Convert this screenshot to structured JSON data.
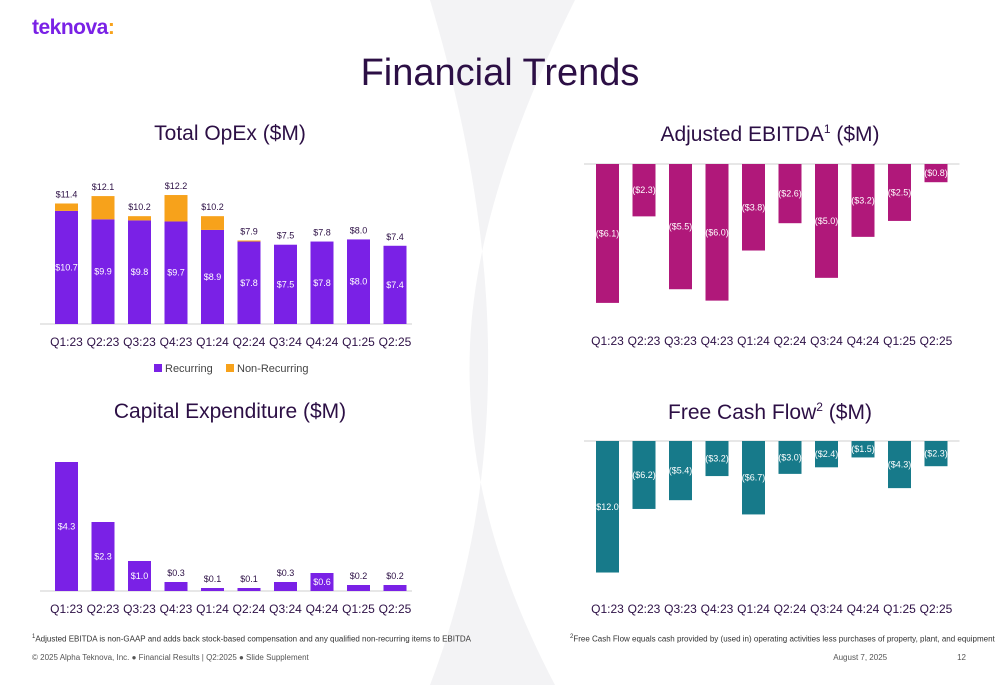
{
  "logo": {
    "text": "teknova",
    "colon": ":"
  },
  "page_title": "Financial Trends",
  "colors": {
    "recurring": "#7a21e6",
    "non_recurring": "#f7a21b",
    "ebitda": "#b0187a",
    "fcf": "#177a8a",
    "capex": "#7a21e6"
  },
  "chart_data": [
    {
      "id": "opex",
      "type": "bar",
      "stacked": true,
      "title": "Total OpEx ($M)",
      "categories": [
        "Q1:23",
        "Q2:23",
        "Q3:23",
        "Q4:23",
        "Q1:24",
        "Q2:24",
        "Q3:24",
        "Q4:24",
        "Q1:25",
        "Q2:25"
      ],
      "series": [
        {
          "name": "Recurring",
          "values": [
            10.7,
            9.9,
            9.8,
            9.7,
            8.9,
            7.8,
            7.5,
            7.8,
            8.0,
            7.4
          ],
          "labels": [
            "$10.7",
            "$9.9",
            "$9.8",
            "$9.7",
            "$8.9",
            "$7.8",
            "$7.5",
            "$7.8",
            "$8.0",
            "$7.4"
          ]
        },
        {
          "name": "Non-Recurring",
          "values": [
            0.7,
            2.2,
            0.4,
            2.5,
            1.3,
            0.1,
            0.0,
            0.0,
            0.0,
            0.0
          ]
        }
      ],
      "totals": [
        "$11.4",
        "$12.1",
        "$10.2",
        "$12.2",
        "$10.2",
        "$7.9",
        "$7.5",
        "$7.8",
        "$8.0",
        "$7.4"
      ],
      "total_values": [
        11.4,
        12.1,
        10.2,
        12.2,
        10.2,
        7.9,
        7.5,
        7.8,
        8.0,
        7.4
      ],
      "legend": [
        "Recurring",
        "Non-Recurring"
      ],
      "legend_position": "bottom",
      "ylim": [
        0,
        14
      ],
      "grid": false
    },
    {
      "id": "ebitda",
      "type": "bar",
      "title": "Adjusted EBITDA",
      "title_sup": "1",
      "title_suffix": " ($M)",
      "categories": [
        "Q1:23",
        "Q2:23",
        "Q3:23",
        "Q4:23",
        "Q1:24",
        "Q2:24",
        "Q3:24",
        "Q4:24",
        "Q1:25",
        "Q2:25"
      ],
      "values": [
        -6.1,
        -2.3,
        -5.5,
        -6.0,
        -3.8,
        -2.6,
        -5.0,
        -3.2,
        -2.5,
        -0.8
      ],
      "labels": [
        "($6.1)",
        "($2.3)",
        "($5.5)",
        "($6.0)",
        "($3.8)",
        "($2.6)",
        "($5.0)",
        "($3.2)",
        "($2.5)",
        "($0.8)"
      ],
      "ylim": [
        -6.5,
        0
      ],
      "grid": false
    },
    {
      "id": "capex",
      "type": "bar",
      "title": "Capital Expenditure ($M)",
      "categories": [
        "Q1:23",
        "Q2:23",
        "Q3:23",
        "Q4:23",
        "Q1:24",
        "Q2:24",
        "Q3:24",
        "Q4:24",
        "Q1:25",
        "Q2:25"
      ],
      "values": [
        4.3,
        2.3,
        1.0,
        0.3,
        0.1,
        0.1,
        0.3,
        0.6,
        0.2,
        0.2
      ],
      "labels": [
        "$4.3",
        "$2.3",
        "$1.0",
        "$0.3",
        "$0.1",
        "$0.1",
        "$0.3",
        "$0.6",
        "$0.2",
        "$0.2"
      ],
      "ylim": [
        0,
        4.5
      ],
      "grid": false
    },
    {
      "id": "fcf",
      "type": "bar",
      "title": "Free Cash Flow",
      "title_sup": "2",
      "title_suffix": " ($M)",
      "categories": [
        "Q1:23",
        "Q2:23",
        "Q3:23",
        "Q4:23",
        "Q1:24",
        "Q2:24",
        "Q3:24",
        "Q4:24",
        "Q1:25",
        "Q2:25"
      ],
      "values": [
        -12.0,
        -6.2,
        -5.4,
        -3.2,
        -6.7,
        -3.0,
        -2.4,
        -1.5,
        -4.3,
        -2.3
      ],
      "labels": [
        "($12.0)",
        "($6.2)",
        "($5.4)",
        "($3.2)",
        "($6.7)",
        "($3.0)",
        "($2.4)",
        "($1.5)",
        "($4.3)",
        "($2.3)"
      ],
      "ylim": [
        -12.5,
        0
      ],
      "grid": false
    }
  ],
  "footnotes": {
    "note1_sup": "1",
    "note1": "Adjusted EBITDA is non-GAAP and adds back stock-based compensation and any qualified non-recurring items to EBITDA",
    "note2_sup": "2",
    "note2": "Free Cash Flow equals cash provided by (used in) operating activities less purchases of property, plant, and equipment"
  },
  "footer": {
    "left": "© 2025 Alpha Teknova, Inc.  ●  Financial Results | Q2:2025  ●  Slide Supplement",
    "date": "August 7, 2025",
    "page": "12"
  }
}
